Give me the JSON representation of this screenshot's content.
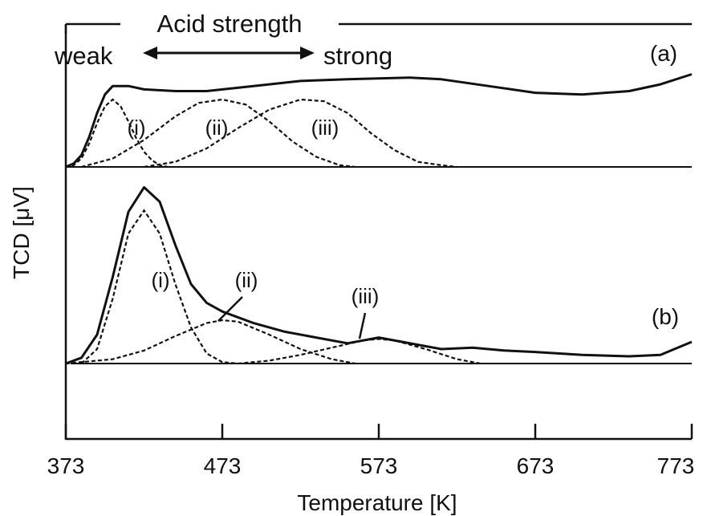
{
  "chart_data": {
    "type": "line",
    "xlabel": "Temperature [K]",
    "ylabel": "TCD [μV]",
    "xlim": [
      373,
      773
    ],
    "x_ticks": [
      "373",
      "473",
      "573",
      "673",
      "773"
    ],
    "header": {
      "title": "Acid strength",
      "weak": "weak",
      "strong": "strong"
    },
    "panels": [
      {
        "label": "(a)",
        "series": [
          {
            "style": "solid",
            "points": [
              [
                373,
                0
              ],
              [
                378,
                0.02
              ],
              [
                383,
                0.07
              ],
              [
                388,
                0.18
              ],
              [
                393,
                0.32
              ],
              [
                398,
                0.43
              ],
              [
                403,
                0.48
              ],
              [
                413,
                0.48
              ],
              [
                423,
                0.46
              ],
              [
                443,
                0.45
              ],
              [
                463,
                0.45
              ],
              [
                493,
                0.48
              ],
              [
                523,
                0.51
              ],
              [
                553,
                0.52
              ],
              [
                593,
                0.53
              ],
              [
                613,
                0.52
              ],
              [
                643,
                0.48
              ],
              [
                673,
                0.44
              ],
              [
                703,
                0.43
              ],
              [
                733,
                0.45
              ],
              [
                753,
                0.49
              ],
              [
                773,
                0.55
              ]
            ]
          },
          {
            "name": "(i)",
            "style": "dashed",
            "points": [
              [
                373,
                0
              ],
              [
                378,
                0.01
              ],
              [
                383,
                0.05
              ],
              [
                388,
                0.14
              ],
              [
                393,
                0.26
              ],
              [
                398,
                0.36
              ],
              [
                403,
                0.4
              ],
              [
                408,
                0.36
              ],
              [
                413,
                0.27
              ],
              [
                418,
                0.17
              ],
              [
                423,
                0.09
              ],
              [
                428,
                0.04
              ],
              [
                433,
                0.01
              ],
              [
                438,
                0
              ]
            ]
          },
          {
            "name": "(ii)",
            "style": "dashed",
            "points": [
              [
                383,
                0
              ],
              [
                403,
                0.05
              ],
              [
                423,
                0.16
              ],
              [
                443,
                0.3
              ],
              [
                458,
                0.38
              ],
              [
                473,
                0.4
              ],
              [
                488,
                0.37
              ],
              [
                503,
                0.27
              ],
              [
                518,
                0.15
              ],
              [
                533,
                0.06
              ],
              [
                548,
                0.01
              ],
              [
                558,
                0
              ]
            ]
          },
          {
            "name": "(iii)",
            "style": "dashed",
            "points": [
              [
                423,
                0
              ],
              [
                443,
                0.03
              ],
              [
                463,
                0.11
              ],
              [
                483,
                0.23
              ],
              [
                503,
                0.34
              ],
              [
                523,
                0.4
              ],
              [
                538,
                0.39
              ],
              [
                553,
                0.32
              ],
              [
                568,
                0.2
              ],
              [
                583,
                0.1
              ],
              [
                598,
                0.03
              ],
              [
                613,
                0.01
              ],
              [
                623,
                0
              ]
            ]
          }
        ]
      },
      {
        "label": "(b)",
        "series": [
          {
            "style": "solid",
            "points": [
              [
                373,
                0
              ],
              [
                383,
                0.04
              ],
              [
                393,
                0.2
              ],
              [
                403,
                0.6
              ],
              [
                413,
                1.05
              ],
              [
                423,
                1.22
              ],
              [
                433,
                1.12
              ],
              [
                443,
                0.82
              ],
              [
                453,
                0.55
              ],
              [
                463,
                0.42
              ],
              [
                473,
                0.36
              ],
              [
                493,
                0.28
              ],
              [
                513,
                0.22
              ],
              [
                533,
                0.18
              ],
              [
                553,
                0.14
              ],
              [
                573,
                0.18
              ],
              [
                593,
                0.14
              ],
              [
                613,
                0.1
              ],
              [
                633,
                0.11
              ],
              [
                653,
                0.09
              ],
              [
                673,
                0.08
              ],
              [
                703,
                0.06
              ],
              [
                733,
                0.05
              ],
              [
                753,
                0.06
              ],
              [
                773,
                0.15
              ]
            ]
          },
          {
            "name": "(i)",
            "style": "dashed",
            "points": [
              [
                383,
                0
              ],
              [
                393,
                0.1
              ],
              [
                403,
                0.45
              ],
              [
                413,
                0.9
              ],
              [
                423,
                1.06
              ],
              [
                433,
                0.9
              ],
              [
                443,
                0.55
              ],
              [
                453,
                0.25
              ],
              [
                463,
                0.07
              ],
              [
                473,
                0.01
              ],
              [
                483,
                0
              ]
            ]
          },
          {
            "name": "(ii)",
            "style": "dashed",
            "points": [
              [
                373,
                0
              ],
              [
                403,
                0.03
              ],
              [
                423,
                0.09
              ],
              [
                443,
                0.19
              ],
              [
                463,
                0.28
              ],
              [
                473,
                0.3
              ],
              [
                483,
                0.29
              ],
              [
                503,
                0.2
              ],
              [
                523,
                0.1
              ],
              [
                543,
                0.03
              ],
              [
                558,
                0
              ]
            ]
          },
          {
            "name": "(iii)",
            "style": "dashed",
            "points": [
              [
                483,
                0
              ],
              [
                503,
                0.02
              ],
              [
                523,
                0.06
              ],
              [
                543,
                0.11
              ],
              [
                563,
                0.16
              ],
              [
                573,
                0.17
              ],
              [
                583,
                0.16
              ],
              [
                603,
                0.1
              ],
              [
                623,
                0.03
              ],
              [
                638,
                0
              ]
            ]
          }
        ]
      }
    ]
  }
}
